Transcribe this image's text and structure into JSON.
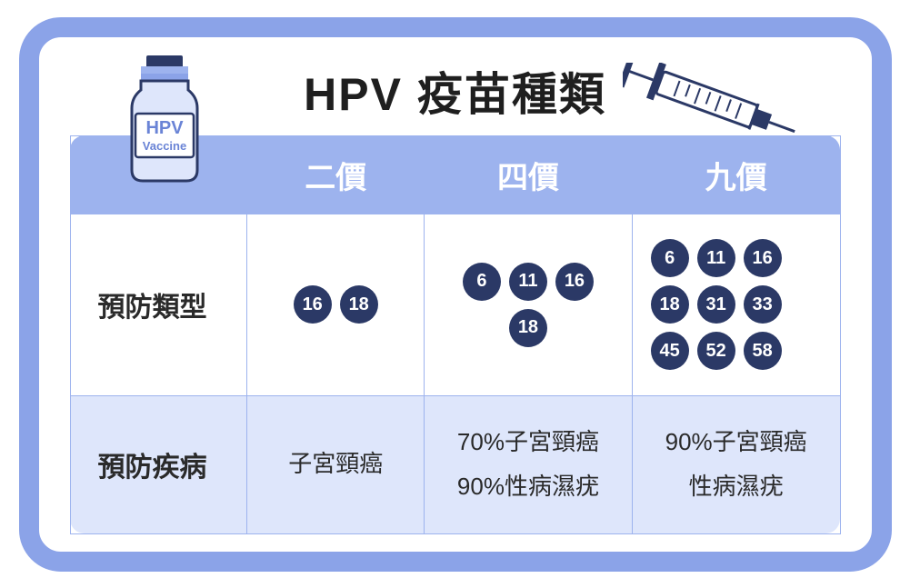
{
  "colors": {
    "frame": "#8ba3e8",
    "head": "#9db3ee",
    "border": "#9db3ee",
    "shade": "#dee6fb",
    "chip": "#2b3966",
    "title": "#1f1f1f",
    "text": "#2a2a2a"
  },
  "title": "HPV 疫苗種類",
  "vial": {
    "line1": "HPV",
    "line2": "Vaccine"
  },
  "columns": {
    "corner": "",
    "bivalent": "二價",
    "quadrivalent": "四價",
    "nonavalent": "九價"
  },
  "rows": {
    "types": {
      "label": "預防類型",
      "bivalent": [
        "16",
        "18"
      ],
      "quadrivalent": [
        "6",
        "11",
        "16",
        "18"
      ],
      "nonavalent": [
        "6",
        "11",
        "16",
        "18",
        "31",
        "33",
        "45",
        "52",
        "58"
      ]
    },
    "disease": {
      "label": "預防疾病",
      "bivalent": [
        "子宮頸癌"
      ],
      "quadrivalent": [
        "70%子宮頸癌",
        "90%性病濕疣"
      ],
      "nonavalent": [
        "90%子宮頸癌",
        "性病濕疣"
      ]
    }
  }
}
